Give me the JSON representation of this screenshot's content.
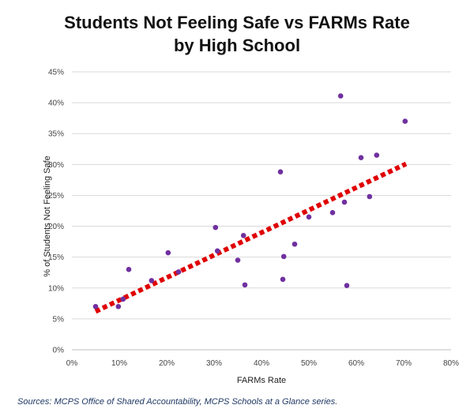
{
  "chart_data": {
    "type": "scatter",
    "title_line1": "Students Not Feeling Safe vs FARMs Rate",
    "title_line2": "by High School",
    "xlabel": "FARMs Rate",
    "ylabel": "% of Students Not Feeling Safe",
    "xlim": [
      0,
      80
    ],
    "ylim": [
      0,
      45
    ],
    "x_ticks": [
      "0%",
      "10%",
      "20%",
      "30%",
      "40%",
      "50%",
      "60%",
      "70%",
      "80%"
    ],
    "y_ticks": [
      "0%",
      "5%",
      "10%",
      "15%",
      "20%",
      "25%",
      "30%",
      "35%",
      "40%",
      "45%"
    ],
    "grid": "horizontal",
    "point_color": "#7030a0",
    "trendline_color": "#e00000",
    "trendline": [
      [
        5,
        6.2
      ],
      [
        70.5,
        30.1
      ]
    ],
    "points": [
      [
        5,
        7.0
      ],
      [
        9.8,
        7.0
      ],
      [
        10.8,
        8.2
      ],
      [
        12,
        13.0
      ],
      [
        16.8,
        11.2
      ],
      [
        20.3,
        15.7
      ],
      [
        22.5,
        12.6
      ],
      [
        30.3,
        19.8
      ],
      [
        30.7,
        16.0
      ],
      [
        35,
        14.5
      ],
      [
        36.2,
        18.5
      ],
      [
        36.5,
        10.5
      ],
      [
        44,
        28.8
      ],
      [
        44.5,
        11.4
      ],
      [
        44.7,
        15.1
      ],
      [
        47,
        17.1
      ],
      [
        50,
        21.5
      ],
      [
        55,
        22.2
      ],
      [
        56.7,
        41.1
      ],
      [
        57.5,
        23.9
      ],
      [
        58,
        10.4
      ],
      [
        61,
        31.1
      ],
      [
        62.8,
        24.8
      ],
      [
        64.3,
        31.5
      ],
      [
        70.3,
        37.0
      ]
    ]
  },
  "source": "Sources: MCPS Office of Shared Accountability, MCPS Schools at a Glance series."
}
